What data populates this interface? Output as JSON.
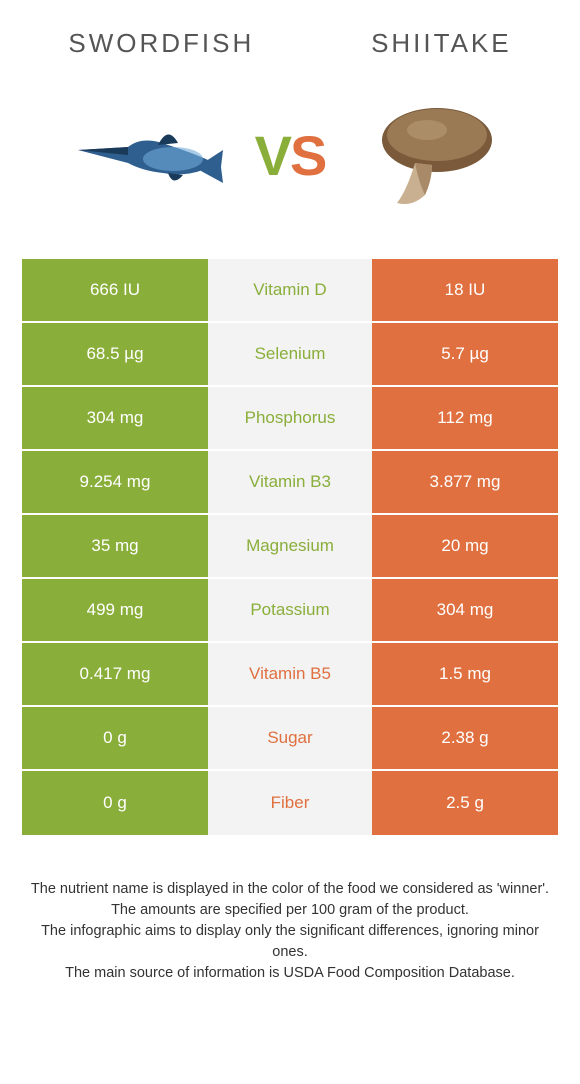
{
  "colors": {
    "left": "#8aae3a",
    "right": "#e0703f",
    "mid_bg": "#f3f3f3",
    "title": "#555555",
    "text": "#333333"
  },
  "titles": {
    "left": "Swordfish",
    "right": "Shiitake"
  },
  "vs": {
    "v": "V",
    "s": "S"
  },
  "rows": [
    {
      "left": "666 IU",
      "label": "Vitamin D",
      "right": "18 IU",
      "winner": "left"
    },
    {
      "left": "68.5 µg",
      "label": "Selenium",
      "right": "5.7 µg",
      "winner": "left"
    },
    {
      "left": "304 mg",
      "label": "Phosphorus",
      "right": "112 mg",
      "winner": "left"
    },
    {
      "left": "9.254 mg",
      "label": "Vitamin B3",
      "right": "3.877 mg",
      "winner": "left"
    },
    {
      "left": "35 mg",
      "label": "Magnesium",
      "right": "20 mg",
      "winner": "left"
    },
    {
      "left": "499 mg",
      "label": "Potassium",
      "right": "304 mg",
      "winner": "left"
    },
    {
      "left": "0.417 mg",
      "label": "Vitamin B5",
      "right": "1.5 mg",
      "winner": "right"
    },
    {
      "left": "0 g",
      "label": "Sugar",
      "right": "2.38 g",
      "winner": "right"
    },
    {
      "left": "0 g",
      "label": "Fiber",
      "right": "2.5 g",
      "winner": "right"
    }
  ],
  "footnotes": [
    "The nutrient name is displayed in the color of the food we considered as 'winner'.",
    "The amounts are specified per 100 gram of the product.",
    "The infographic aims to display only the significant differences, ignoring minor ones.",
    "The main source of information is USDA Food Composition Database."
  ]
}
